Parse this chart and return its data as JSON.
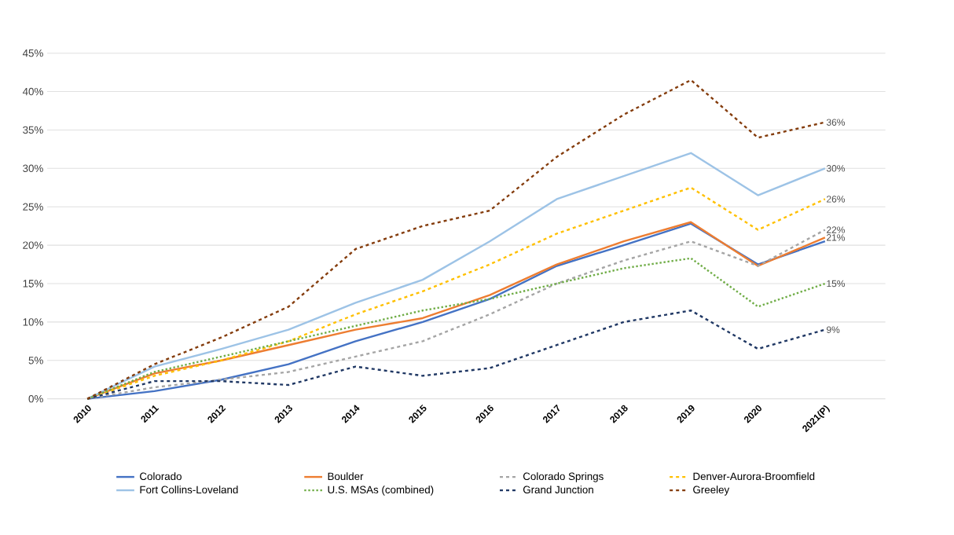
{
  "chart_data": {
    "type": "line",
    "categories": [
      "2010",
      "2011",
      "2012",
      "2013",
      "2014",
      "2015",
      "2016",
      "2017",
      "2018",
      "2019",
      "2020",
      "2021(P)"
    ],
    "ylim": [
      0,
      45
    ],
    "yticks": [
      {
        "value": 0,
        "label": "0%"
      },
      {
        "value": 5,
        "label": "5%"
      },
      {
        "value": 10,
        "label": "10%"
      },
      {
        "value": 15,
        "label": "15%"
      },
      {
        "value": 20,
        "label": "20%"
      },
      {
        "value": 25,
        "label": "25%"
      },
      {
        "value": 30,
        "label": "30%"
      },
      {
        "value": 35,
        "label": "35%"
      },
      {
        "value": 40,
        "label": "40%"
      },
      {
        "value": 45,
        "label": "45%"
      }
    ],
    "grid": "y",
    "legend": "bottom",
    "marker": "none",
    "series": [
      {
        "name": "Colorado",
        "color": "#4472c4",
        "line_style": "solid",
        "values": [
          0,
          1,
          2.5,
          4.5,
          7.5,
          10,
          13,
          17.3,
          20,
          22.8,
          17.5,
          20.5
        ]
      },
      {
        "name": "Boulder",
        "color": "#ed7d31",
        "line_style": "solid",
        "values": [
          0,
          3.3,
          5,
          7,
          9,
          10.5,
          13.5,
          17.5,
          20.5,
          23,
          17.3,
          21
        ],
        "value_labels": [
          null,
          null,
          null,
          null,
          null,
          null,
          null,
          null,
          null,
          null,
          null,
          "21%"
        ]
      },
      {
        "name": "Colorado Springs",
        "color": "#a5a5a5",
        "line_style": "dashed",
        "values": [
          0,
          1.5,
          2.5,
          3.5,
          5.5,
          7.5,
          11,
          15,
          18,
          20.5,
          17.3,
          22
        ],
        "value_labels": [
          null,
          null,
          null,
          null,
          null,
          null,
          null,
          null,
          null,
          null,
          null,
          "22%"
        ]
      },
      {
        "name": "Denver-Aurora-Broomfield",
        "color": "#ffc000",
        "line_style": "dashed",
        "values": [
          0,
          3,
          5,
          7.5,
          11,
          14,
          17.5,
          21.5,
          24.5,
          27.5,
          22,
          26
        ],
        "value_labels": [
          null,
          null,
          null,
          null,
          null,
          null,
          null,
          null,
          null,
          null,
          null,
          "26%"
        ]
      },
      {
        "name": "Fort Collins-Loveland",
        "color": "#9dc3e6",
        "line_style": "solid",
        "values": [
          0,
          4.2,
          6.5,
          9,
          12.5,
          15.5,
          20.5,
          26,
          29,
          32,
          26.5,
          30
        ],
        "value_labels": [
          null,
          null,
          null,
          null,
          null,
          null,
          null,
          null,
          null,
          null,
          null,
          "30%"
        ]
      },
      {
        "name": "U.S. MSAs (combined)",
        "color": "#70ad47",
        "line_style": "dotted",
        "values": [
          0,
          3.5,
          5.5,
          7.5,
          9.5,
          11.5,
          13,
          15,
          17,
          18.3,
          12,
          15
        ],
        "value_labels": [
          null,
          null,
          null,
          null,
          null,
          null,
          null,
          null,
          null,
          null,
          null,
          "15%"
        ]
      },
      {
        "name": "Grand Junction",
        "color": "#203864",
        "line_style": "dashed",
        "values": [
          0,
          2.3,
          2.3,
          1.8,
          4.2,
          3,
          4,
          7,
          10,
          11.5,
          6.5,
          9
        ],
        "value_labels": [
          null,
          null,
          null,
          null,
          null,
          null,
          null,
          null,
          null,
          null,
          null,
          "9%"
        ]
      },
      {
        "name": "Greeley",
        "color": "#843c0c",
        "line_style": "dashed",
        "values": [
          0,
          4.5,
          8,
          12,
          19.5,
          22.5,
          24.5,
          31.5,
          37,
          41.5,
          34,
          36
        ],
        "value_labels": [
          null,
          null,
          null,
          null,
          null,
          null,
          null,
          null,
          null,
          null,
          null,
          "36%"
        ]
      }
    ]
  }
}
